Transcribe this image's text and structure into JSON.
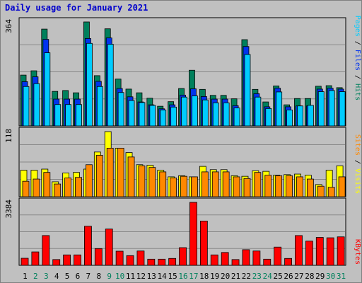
{
  "title": "Daily usage for January 2021",
  "colors": {
    "pages": "#00ccff",
    "files": "#0033ee",
    "hits": "#00805c",
    "visits": "#ffff00",
    "sites": "#ff8800",
    "kbytes": "#ff0000"
  },
  "chart_data": [
    {
      "type": "bar",
      "title": "Daily usage for January 2021",
      "categories": [
        "1",
        "2",
        "3",
        "4",
        "5",
        "6",
        "7",
        "8",
        "9",
        "10",
        "11",
        "12",
        "13",
        "14",
        "15",
        "16",
        "17",
        "18",
        "19",
        "20",
        "21",
        "22",
        "23",
        "24",
        "25",
        "26",
        "27",
        "28",
        "29",
        "30",
        "31"
      ],
      "weekend_days": [
        "2",
        "3",
        "9",
        "10",
        "16",
        "17",
        "23",
        "24",
        "30",
        "31"
      ],
      "ylim": [
        0,
        364
      ],
      "max_label": "364",
      "side_label": [
        "Pages",
        "Files",
        "Hits"
      ],
      "series": [
        {
          "name": "Hits",
          "values": [
            178,
            193,
            339,
            121,
            124,
            116,
            364,
            176,
            340,
            164,
            129,
            116,
            97,
            69,
            85,
            131,
            195,
            128,
            107,
            107,
            95,
            302,
            128,
            84,
            140,
            74,
            96,
            96,
            139,
            141,
            134
          ]
        },
        {
          "name": "Files",
          "values": [
            155,
            172,
            303,
            94,
            94,
            94,
            306,
            156,
            308,
            131,
            102,
            84,
            74,
            60,
            74,
            108,
            130,
            103,
            94,
            94,
            71,
            278,
            113,
            67,
            132,
            67,
            70,
            70,
            129,
            132,
            129
          ]
        },
        {
          "name": "Pages",
          "values": [
            138,
            148,
            256,
            75,
            75,
            75,
            289,
            138,
            286,
            117,
            89,
            82,
            72,
            56,
            66,
            101,
            105,
            91,
            81,
            81,
            63,
            250,
            101,
            61,
            119,
            56,
            70,
            72,
            120,
            124,
            120
          ]
        }
      ]
    },
    {
      "type": "bar",
      "categories": [
        "1",
        "2",
        "3",
        "4",
        "5",
        "6",
        "7",
        "8",
        "9",
        "10",
        "11",
        "12",
        "13",
        "14",
        "15",
        "16",
        "17",
        "18",
        "19",
        "20",
        "21",
        "22",
        "23",
        "24",
        "25",
        "26",
        "27",
        "28",
        "29",
        "30",
        "31"
      ],
      "ylim": [
        0,
        118
      ],
      "max_label": "118",
      "side_label": [
        "Sites",
        "Visits"
      ],
      "series": [
        {
          "name": "Visits",
          "values": [
            48,
            48,
            50,
            27,
            43,
            44,
            50,
            81,
            118,
            88,
            80,
            58,
            57,
            48,
            36,
            38,
            36,
            55,
            49,
            49,
            38,
            37,
            47,
            46,
            39,
            40,
            41,
            39,
            22,
            48,
            56
          ]
        },
        {
          "name": "Sites",
          "values": [
            28,
            32,
            44,
            23,
            34,
            35,
            58,
            75,
            88,
            88,
            72,
            56,
            53,
            45,
            34,
            37,
            36,
            45,
            45,
            45,
            36,
            33,
            44,
            39,
            38,
            38,
            36,
            32,
            19,
            17,
            36
          ]
        }
      ]
    },
    {
      "type": "bar",
      "categories": [
        "1",
        "2",
        "3",
        "4",
        "5",
        "6",
        "7",
        "8",
        "9",
        "10",
        "11",
        "12",
        "13",
        "14",
        "15",
        "16",
        "17",
        "18",
        "19",
        "20",
        "21",
        "22",
        "23",
        "24",
        "25",
        "26",
        "27",
        "28",
        "29",
        "30",
        "31"
      ],
      "ylim": [
        0,
        3384
      ],
      "max_label": "3384",
      "side_label": [
        "KBytes"
      ],
      "series": [
        {
          "name": "KBytes",
          "values": [
            380,
            720,
            1600,
            310,
            560,
            560,
            2100,
            900,
            1950,
            760,
            520,
            770,
            330,
            330,
            370,
            950,
            3384,
            2380,
            560,
            690,
            310,
            840,
            770,
            330,
            980,
            370,
            1600,
            1300,
            1500,
            1480,
            1530
          ]
        }
      ]
    }
  ]
}
